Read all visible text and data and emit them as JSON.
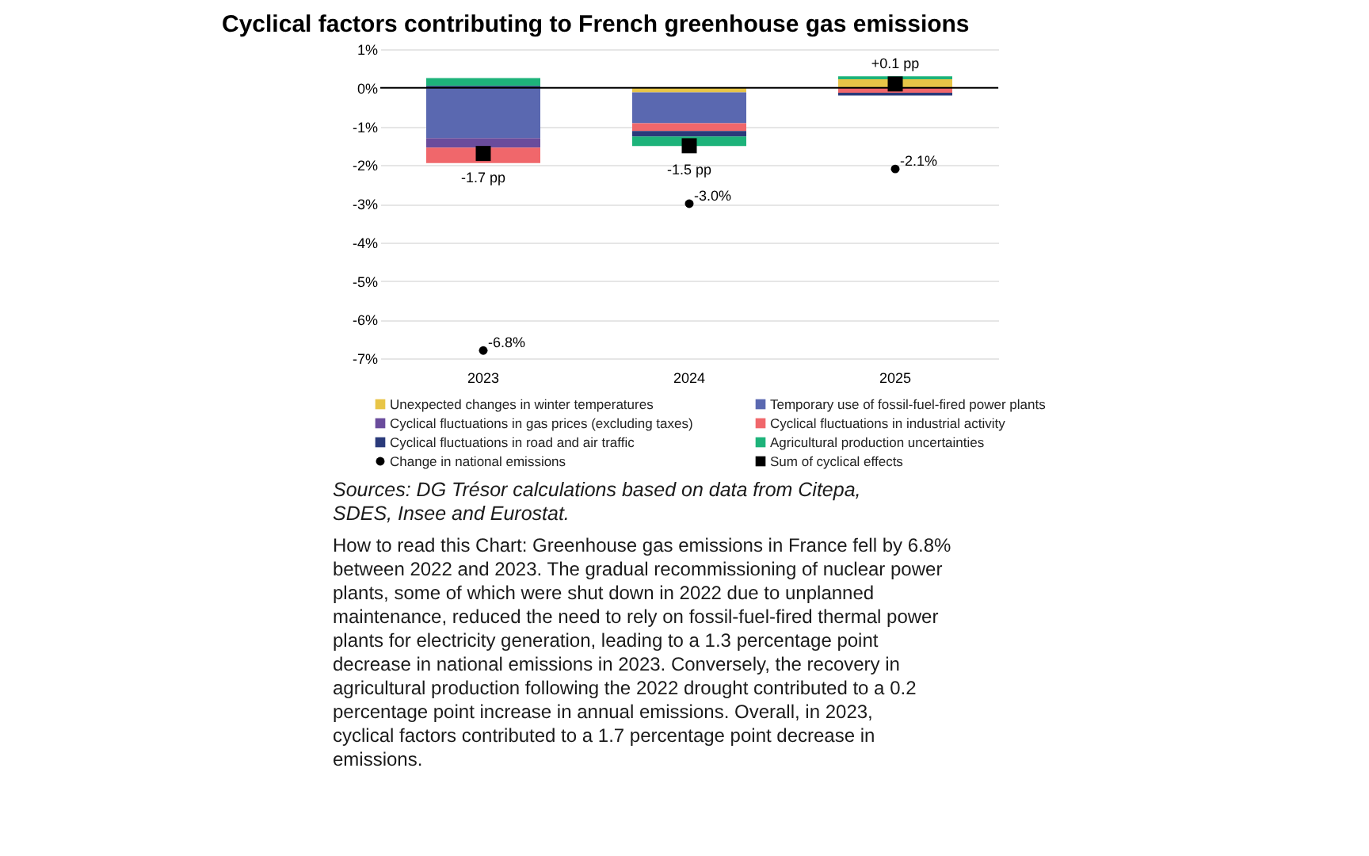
{
  "chart_data": {
    "type": "bar",
    "title": "Cyclical factors contributing to French greenhouse gas emissions",
    "categories": [
      "2023",
      "2024",
      "2025"
    ],
    "stacked": true,
    "series": [
      {
        "name": "Unexpected changes in winter temperatures",
        "color": "#e8c547",
        "values": [
          0,
          -0.12,
          0.22
        ]
      },
      {
        "name": "Temporary use of fossil-fuel-fired power plants",
        "color": "#5a68b0",
        "values": [
          -1.3,
          -0.8,
          0
        ]
      },
      {
        "name": "Cyclical fluctuations in gas prices (excluding taxes)",
        "color": "#6a4c9c",
        "values": [
          -0.25,
          0,
          0
        ]
      },
      {
        "name": "Cyclical fluctuations in industrial activity",
        "color": "#f0676b",
        "values": [
          -0.4,
          -0.2,
          -0.13
        ]
      },
      {
        "name": "Cyclical fluctuations in road and air traffic",
        "color": "#2a3a7a",
        "values": [
          0.05,
          -0.14,
          -0.07
        ]
      },
      {
        "name": "Agricultural production uncertainties",
        "color": "#1db37a",
        "values": [
          0.2,
          -0.25,
          0.08
        ]
      },
      {
        "name": "Change in national emissions",
        "type": "scatter",
        "marker": "circle",
        "color": "#000000",
        "values": [
          -6.8,
          -3.0,
          -2.1
        ],
        "value_labels": [
          "-6.8%",
          "-3.0%",
          "-2.1%"
        ]
      },
      {
        "name": "Sum of cyclical effects",
        "type": "scatter",
        "marker": "square",
        "color": "#000000",
        "values": [
          -1.7,
          -1.5,
          0.1
        ],
        "value_labels": [
          "-1.7 pp",
          "-1.5 pp",
          "+0.1 pp"
        ]
      }
    ],
    "ylim": [
      -7,
      1
    ],
    "yticks": [
      {
        "value": 1,
        "label": "1%"
      },
      {
        "value": 0,
        "label": "0%"
      },
      {
        "value": -1,
        "label": "-1%"
      },
      {
        "value": -2,
        "label": "-2%"
      },
      {
        "value": -3,
        "label": "-3%"
      },
      {
        "value": -4,
        "label": "-4%"
      },
      {
        "value": -5,
        "label": "-5%"
      },
      {
        "value": -6,
        "label": "-6%"
      },
      {
        "value": -7,
        "label": "-7%"
      }
    ],
    "grid": "y",
    "legend": "bottom",
    "ref_lines": [
      {
        "axis": "y",
        "value": 0,
        "color": "#000000"
      }
    ],
    "annotations": [
      "Sources: DG Trésor calculations based on data from Citepa, SDES, Insee and Eurostat.",
      "How to read this Chart: Greenhouse gas emissions in France fell by 6.8% between 2022 and 2023. The gradual recommissioning of nuclear power plants, some of which were shut down in 2022 due to unplanned maintenance, reduced the need to rely on fossil-fuel-fired thermal power plants for electricity generation, leading to a 1.3 percentage point decrease in national emissions in 2023. Conversely, the recovery in agricultural production following the 2022 drought contributed to a 0.2 percentage point increase in annual emissions. Overall, in 2023, cyclical factors contributed to a 1.7 percentage point decrease in emissions."
    ]
  }
}
